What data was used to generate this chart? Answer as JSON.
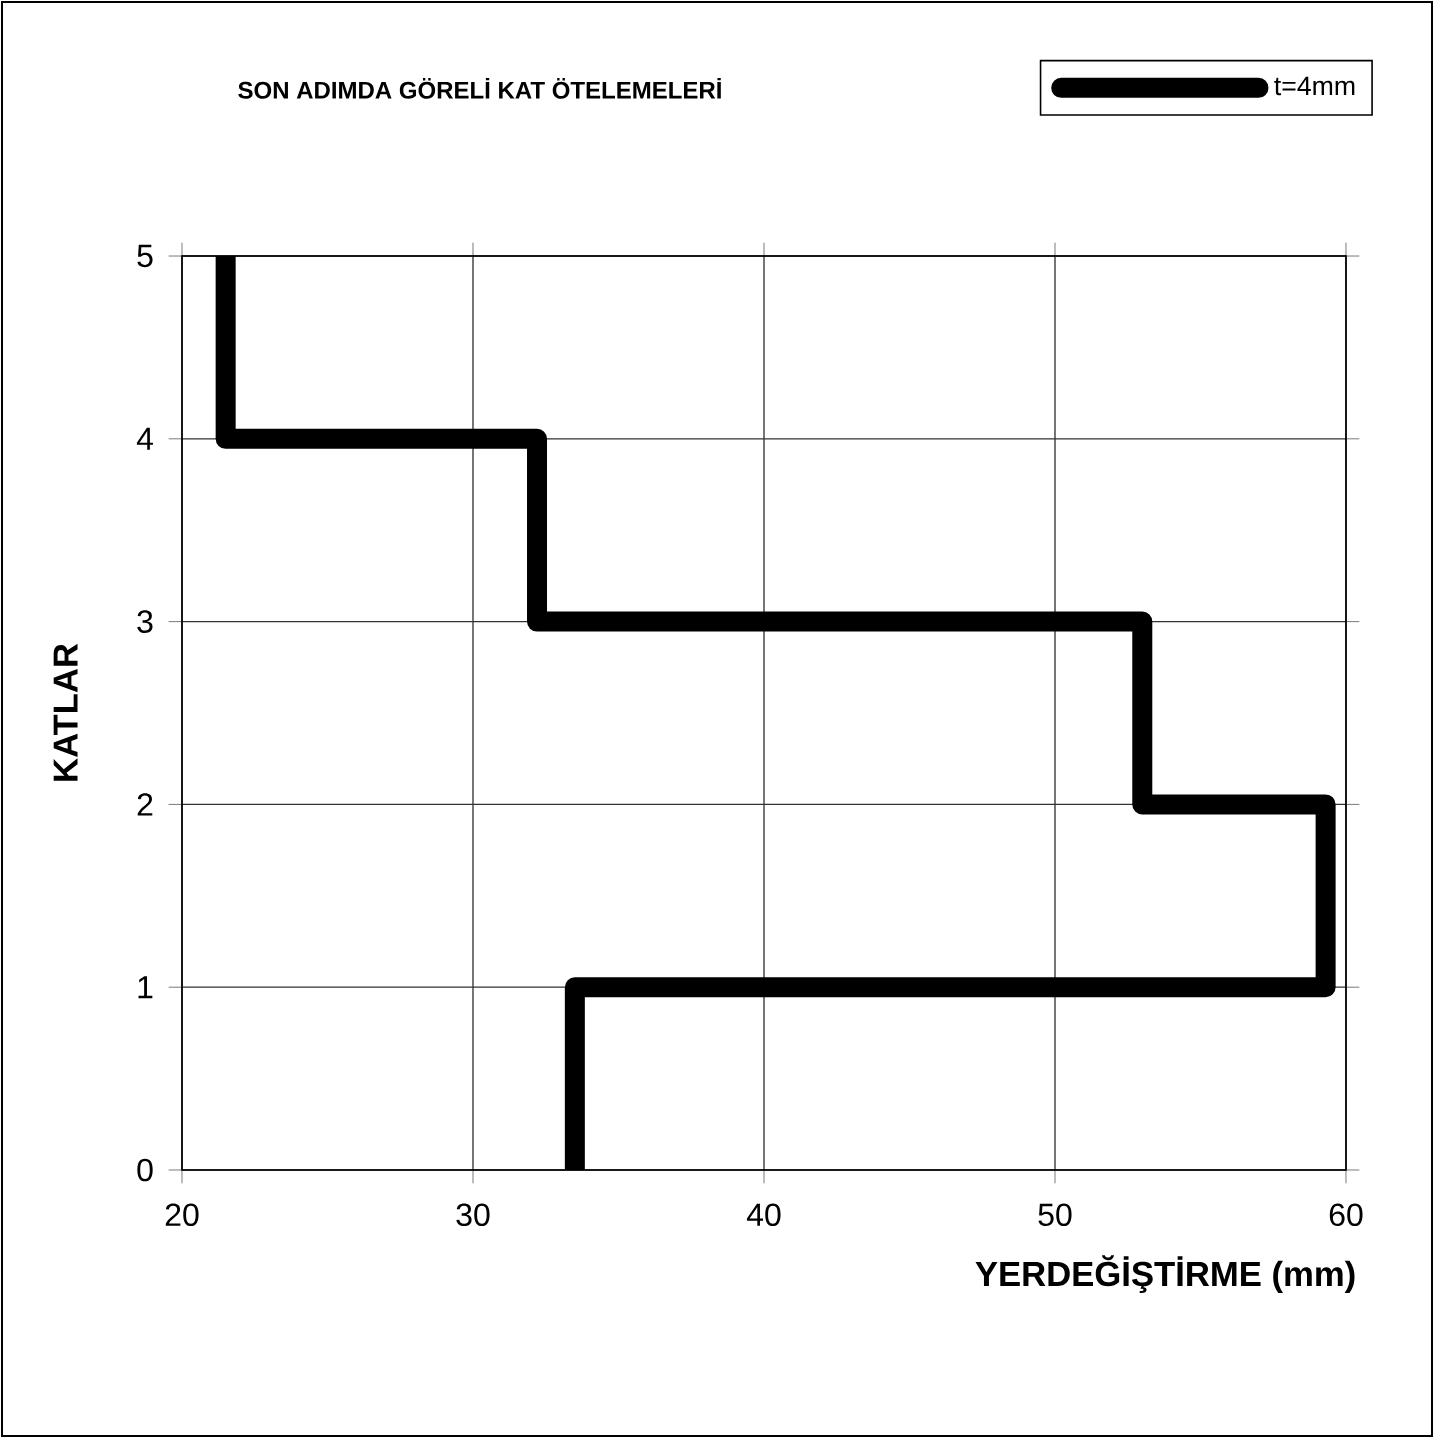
{
  "chart_data": {
    "type": "line",
    "title": "SON ADIMDA GÖRELİ KAT ÖTELEMELERİ",
    "xlabel": "YERDEĞİŞTİRME (mm)",
    "ylabel": "KATLAR",
    "series": [
      {
        "name": "t=4mm",
        "color": "#000000",
        "x": [
          21.5,
          21.5,
          32.2,
          32.2,
          53.0,
          53.0,
          59.3,
          59.3,
          33.5,
          33.5
        ],
        "values": [
          5,
          4,
          4,
          3,
          3,
          2,
          2,
          1,
          1,
          0
        ]
      }
    ],
    "xlim": [
      20,
      60
    ],
    "ylim": [
      0,
      5
    ],
    "xticks": [
      20,
      30,
      40,
      50,
      60
    ],
    "yticks": [
      0,
      1,
      2,
      3,
      4,
      5
    ],
    "grid": true,
    "legend": "top right"
  }
}
